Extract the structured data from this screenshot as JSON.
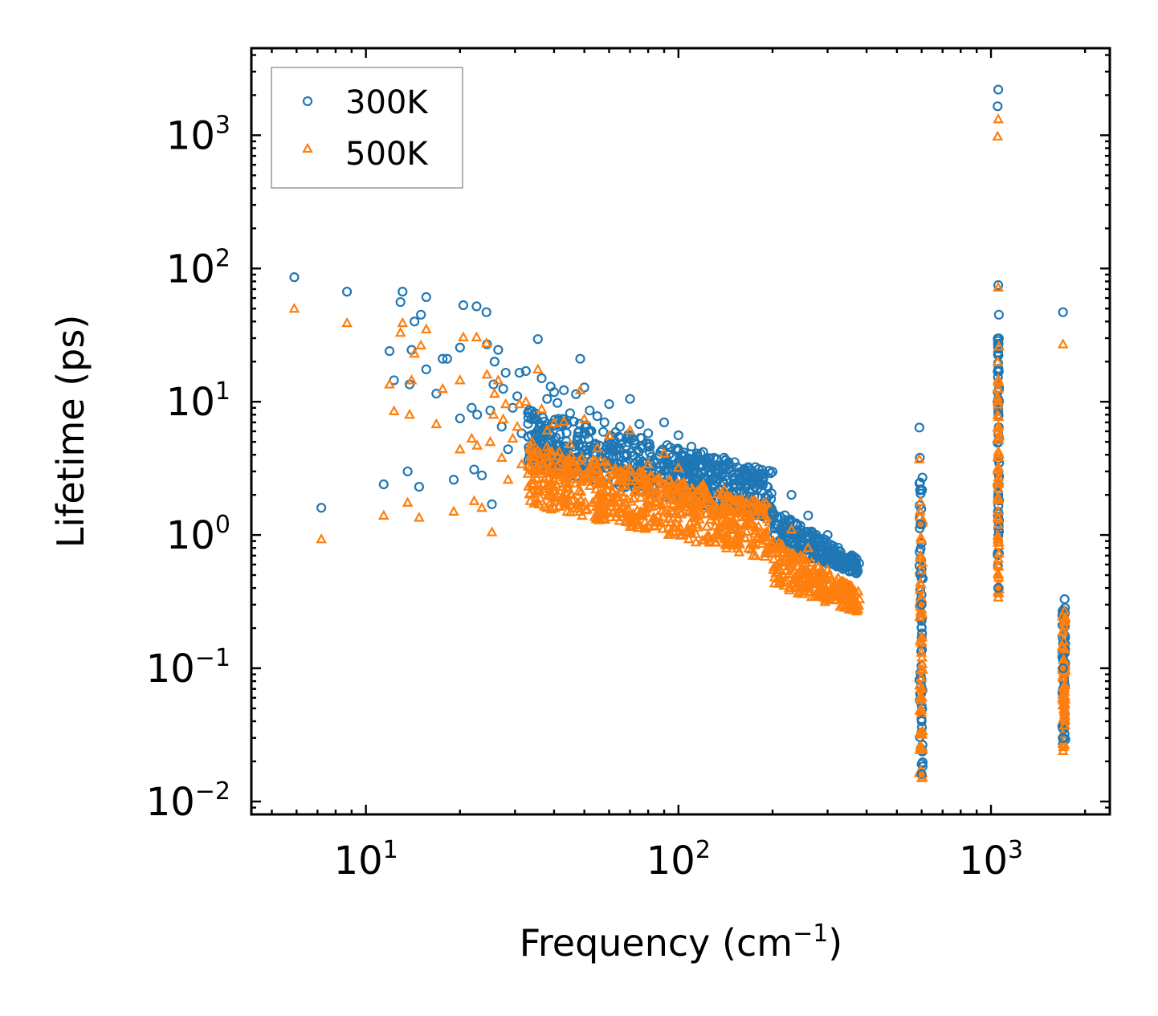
{
  "chart_data": {
    "type": "scatter",
    "title": "",
    "xlabel": "Frequency (cm",
    "xlabel_sup": "−1",
    "xlabel_end": ")",
    "ylabel": "Lifetime (ps)",
    "xscale": "log",
    "yscale": "log",
    "xlim": [
      4.3,
      2400
    ],
    "ylim": [
      0.008,
      4500
    ],
    "legend_position": "top-left",
    "xticks": [
      {
        "base": "10",
        "exp": "1",
        "value": 10
      },
      {
        "base": "10",
        "exp": "2",
        "value": 100
      },
      {
        "base": "10",
        "exp": "3",
        "value": 1000
      }
    ],
    "yticks": [
      {
        "base": "10",
        "exp": "−2",
        "value": 0.01
      },
      {
        "base": "10",
        "exp": "−1",
        "value": 0.1
      },
      {
        "base": "10",
        "exp": "0",
        "value": 1
      },
      {
        "base": "10",
        "exp": "1",
        "value": 10
      },
      {
        "base": "10",
        "exp": "2",
        "value": 100
      },
      {
        "base": "10",
        "exp": "3",
        "value": 1000
      }
    ],
    "series": [
      {
        "name": "300K",
        "marker": "circle",
        "color": "#1f77b4",
        "points": [
          [
            5.9,
            86
          ],
          [
            7.2,
            1.6
          ],
          [
            8.7,
            67
          ],
          [
            11.4,
            2.4
          ],
          [
            11.9,
            24
          ],
          [
            12.3,
            14.5
          ],
          [
            12.9,
            56
          ],
          [
            13.1,
            67
          ],
          [
            13.6,
            3.0
          ],
          [
            13.8,
            13.5
          ],
          [
            14.0,
            24.5
          ],
          [
            14.3,
            40
          ],
          [
            14.8,
            2.3
          ],
          [
            15.0,
            45
          ],
          [
            15.6,
            61
          ],
          [
            15.6,
            17.5
          ],
          [
            16.8,
            11.5
          ],
          [
            17.6,
            21
          ],
          [
            18.2,
            21
          ],
          [
            19.1,
            2.6
          ],
          [
            20.0,
            25.5
          ],
          [
            20.0,
            7.5
          ],
          [
            20.5,
            53
          ],
          [
            21.8,
            9.0
          ],
          [
            22.2,
            3.1
          ],
          [
            22.6,
            52
          ],
          [
            22.7,
            8.0
          ],
          [
            23.5,
            2.8
          ],
          [
            24.3,
            47
          ],
          [
            24.4,
            27
          ],
          [
            25.0,
            8.6
          ],
          [
            25.3,
            1.7
          ],
          [
            25.6,
            13.5
          ],
          [
            25.8,
            20
          ],
          [
            26.5,
            24.5
          ],
          [
            27.2,
            6.5
          ],
          [
            27.5,
            12.5
          ],
          [
            28.0,
            16.5
          ],
          [
            28.5,
            4.4
          ],
          [
            29.5,
            9.0
          ],
          [
            30.5,
            11
          ],
          [
            31.0,
            16.5
          ],
          [
            31.5,
            5.8
          ],
          [
            32.5,
            17
          ],
          [
            34.0,
            8.5
          ],
          [
            35.5,
            29.5
          ],
          [
            36.5,
            15
          ],
          [
            38.0,
            10.5
          ],
          [
            39.0,
            13
          ],
          [
            40.0,
            11.8
          ],
          [
            41.0,
            9.8
          ],
          [
            43.0,
            12.2
          ],
          [
            45.0,
            8.2
          ],
          [
            47.0,
            11.4
          ],
          [
            48.5,
            21
          ],
          [
            50.0,
            12.8
          ],
          [
            52.0,
            8.6
          ],
          [
            55.0,
            7.8
          ],
          [
            58.0,
            7.0
          ],
          [
            60.0,
            9.6
          ],
          [
            65.0,
            6.5
          ],
          [
            70.0,
            10.5
          ],
          [
            75.0,
            6.8
          ],
          [
            80.0,
            5.8
          ],
          [
            90.0,
            7.0
          ],
          [
            100.0,
            5.6
          ],
          [
            110.0,
            4.6
          ],
          [
            120.0,
            4.2
          ],
          [
            140.0,
            3.8
          ],
          [
            160.0,
            3.0
          ],
          [
            180.0,
            2.8
          ],
          [
            200.0,
            1.5
          ],
          [
            230.0,
            2.0
          ],
          [
            260.0,
            1.4
          ],
          [
            300.0,
            1.0
          ],
          [
            350.0,
            0.62
          ],
          [
            590.0,
            6.4
          ],
          [
            592.0,
            3.8
          ],
          [
            595.0,
            1.2
          ],
          [
            600.0,
            0.3
          ],
          [
            600.0,
            0.04
          ],
          [
            600.0,
            0.016
          ],
          [
            1055.0,
            2200
          ],
          [
            1050.0,
            1650
          ],
          [
            1055.0,
            75
          ],
          [
            1060.0,
            45
          ],
          [
            1058.0,
            25
          ],
          [
            1055.0,
            0.4
          ],
          [
            1700.0,
            47
          ],
          [
            1720.0,
            0.33
          ],
          [
            1700.0,
            0.1
          ],
          [
            1700.0,
            0.03
          ]
        ]
      },
      {
        "name": "500K",
        "marker": "triangle",
        "color": "#ff7f0e",
        "points": [
          [
            5.9,
            50
          ],
          [
            7.2,
            0.93
          ],
          [
            8.7,
            39
          ],
          [
            11.4,
            1.4
          ],
          [
            11.9,
            13.5
          ],
          [
            12.3,
            8.5
          ],
          [
            12.9,
            33
          ],
          [
            13.1,
            39
          ],
          [
            13.6,
            1.75
          ],
          [
            13.8,
            8.0
          ],
          [
            14.0,
            14.5
          ],
          [
            14.3,
            23
          ],
          [
            14.8,
            1.35
          ],
          [
            15.0,
            26.5
          ],
          [
            15.6,
            35
          ],
          [
            16.8,
            6.8
          ],
          [
            17.6,
            12.5
          ],
          [
            19.1,
            1.5
          ],
          [
            20.0,
            14.5
          ],
          [
            20.0,
            4.4
          ],
          [
            20.5,
            30.5
          ],
          [
            21.8,
            5.3
          ],
          [
            22.2,
            1.8
          ],
          [
            22.6,
            30.5
          ],
          [
            22.7,
            4.7
          ],
          [
            23.5,
            1.6
          ],
          [
            24.3,
            27.5
          ],
          [
            24.4,
            16
          ],
          [
            25.0,
            5.0
          ],
          [
            25.3,
            1.05
          ],
          [
            25.6,
            8.0
          ],
          [
            25.8,
            11.5
          ],
          [
            26.5,
            14.5
          ],
          [
            27.2,
            3.8
          ],
          [
            27.5,
            7.4
          ],
          [
            28.0,
            9.6
          ],
          [
            28.5,
            2.6
          ],
          [
            29.5,
            5.3
          ],
          [
            30.5,
            6.5
          ],
          [
            31.0,
            9.6
          ],
          [
            31.5,
            3.4
          ],
          [
            32.5,
            10
          ],
          [
            34.0,
            5.0
          ],
          [
            35.5,
            17.5
          ],
          [
            36.5,
            8.8
          ],
          [
            38.0,
            6.1
          ],
          [
            40.0,
            6.9
          ],
          [
            43.0,
            7.1
          ],
          [
            45.0,
            4.8
          ],
          [
            48.5,
            12.2
          ],
          [
            50.0,
            7.4
          ],
          [
            55.0,
            4.5
          ],
          [
            60.0,
            5.6
          ],
          [
            70.0,
            6.1
          ],
          [
            80.0,
            3.4
          ],
          [
            90.0,
            4.1
          ],
          [
            100.0,
            3.2
          ],
          [
            120.0,
            2.4
          ],
          [
            140.0,
            2.2
          ],
          [
            160.0,
            1.7
          ],
          [
            180.0,
            1.6
          ],
          [
            200.0,
            0.85
          ],
          [
            230.0,
            1.1
          ],
          [
            260.0,
            0.8
          ],
          [
            300.0,
            0.55
          ],
          [
            350.0,
            0.34
          ],
          [
            590.0,
            3.7
          ],
          [
            595.0,
            0.7
          ],
          [
            600.0,
            0.17
          ],
          [
            600.0,
            0.025
          ],
          [
            600.0,
            0.015
          ],
          [
            1055.0,
            1320
          ],
          [
            1050.0,
            980
          ],
          [
            1055.0,
            72
          ],
          [
            1060.0,
            26
          ],
          [
            1058.0,
            14
          ],
          [
            1055.0,
            0.34
          ],
          [
            1700.0,
            27
          ],
          [
            1720.0,
            0.27
          ],
          [
            1700.0,
            0.06
          ],
          [
            1700.0,
            0.024
          ]
        ]
      }
    ],
    "band_regions": [
      {
        "series": "300K",
        "x_start": 33,
        "x_end": 200,
        "low": [
          3.2,
          1.3
        ],
        "high": [
          9.0,
          3.0
        ]
      },
      {
        "series": "500K",
        "x_start": 33,
        "x_end": 200,
        "low": [
          1.7,
          0.65
        ],
        "high": [
          5.0,
          1.7
        ]
      },
      {
        "series": "300K",
        "x_start": 200,
        "x_end": 380,
        "low": [
          0.85,
          0.5
        ],
        "high": [
          1.6,
          0.65
        ]
      },
      {
        "series": "500K",
        "x_start": 200,
        "x_end": 380,
        "low": [
          0.42,
          0.26
        ],
        "high": [
          0.95,
          0.38
        ]
      },
      {
        "series": "300K",
        "x_start": 590,
        "x_end": 605,
        "low": [
          0.016,
          0.016
        ],
        "high": [
          3.0,
          3.0
        ]
      },
      {
        "series": "500K",
        "x_start": 590,
        "x_end": 605,
        "low": [
          0.015,
          0.015
        ],
        "high": [
          1.8,
          1.8
        ]
      },
      {
        "series": "300K",
        "x_start": 1050,
        "x_end": 1062,
        "low": [
          0.45,
          0.45
        ],
        "high": [
          30,
          30
        ]
      },
      {
        "series": "500K",
        "x_start": 1050,
        "x_end": 1062,
        "low": [
          0.35,
          0.35
        ],
        "high": [
          20,
          20
        ]
      },
      {
        "series": "300K",
        "x_start": 1690,
        "x_end": 1730,
        "low": [
          0.026,
          0.026
        ],
        "high": [
          0.3,
          0.3
        ]
      },
      {
        "series": "500K",
        "x_start": 1690,
        "x_end": 1730,
        "low": [
          0.024,
          0.024
        ],
        "high": [
          0.25,
          0.25
        ]
      }
    ]
  }
}
